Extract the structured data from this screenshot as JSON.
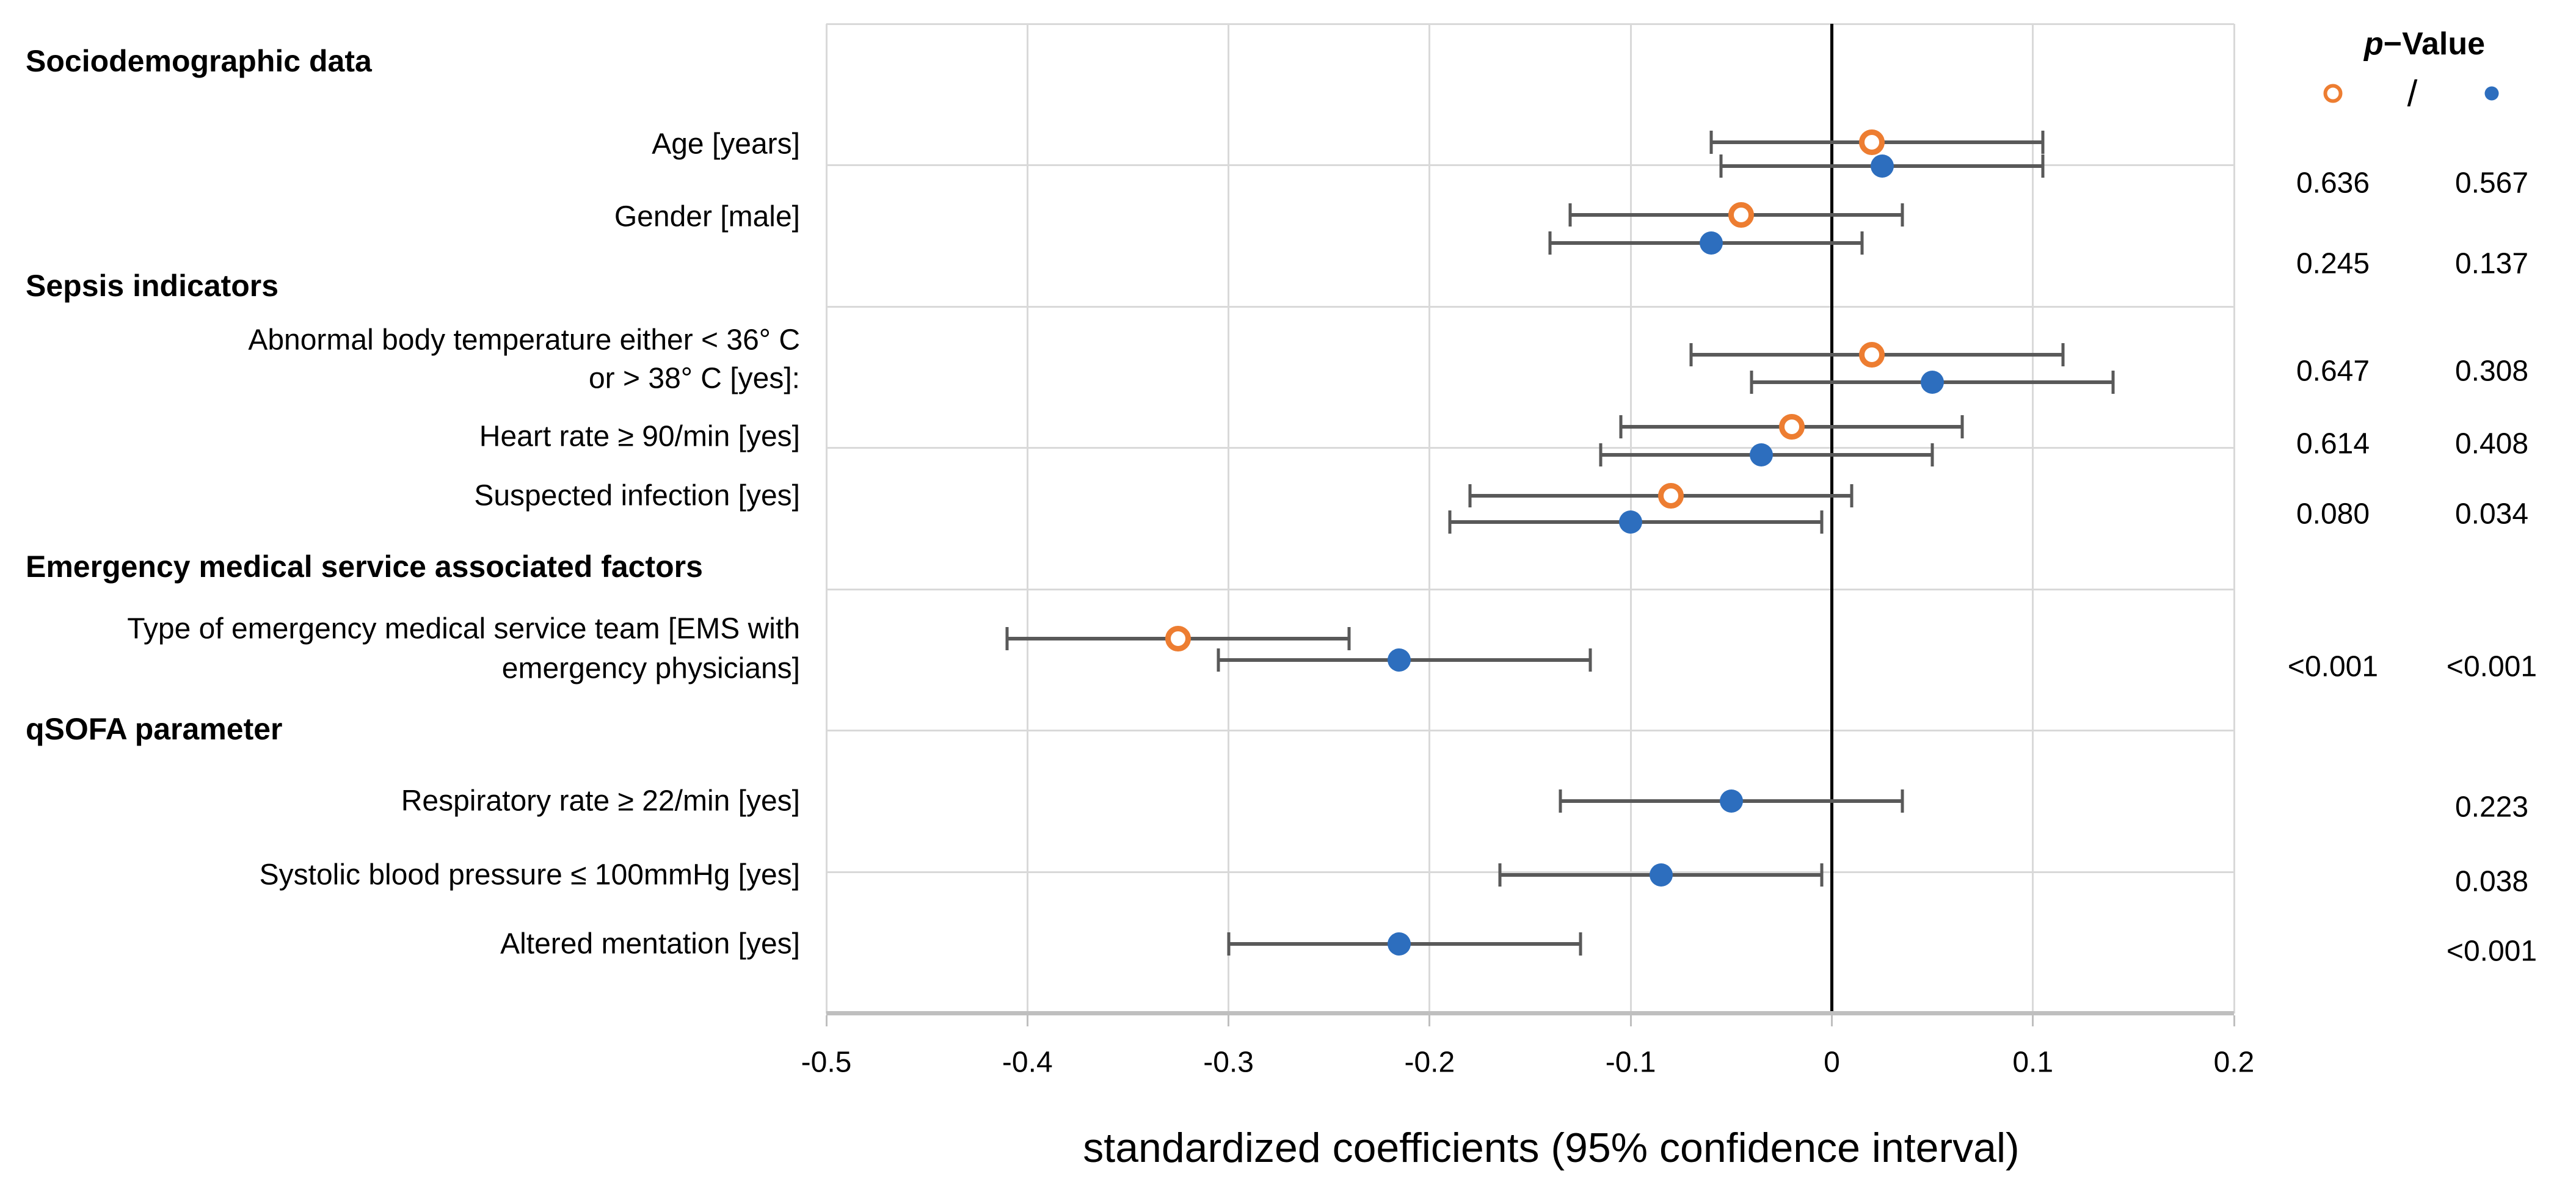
{
  "legend": {
    "title_p": "p",
    "title_rest": "−Value",
    "separator": "/",
    "orange_marker": "orange-open-circle",
    "blue_marker": "blue-filled-circle"
  },
  "axis": {
    "title": "standardized coefficients (95% confidence interval)",
    "tick_labels": [
      "-0.5",
      "-0.4",
      "-0.3",
      "-0.2",
      "-0.1",
      "0",
      "0.1",
      "0.2"
    ]
  },
  "colors": {
    "orange": "#ED7D31",
    "blue": "#2D6EBE",
    "error_bar": "#595959",
    "gridline": "#D9D9D9",
    "axis_line": "#BFBFBF",
    "zero_line": "#000000"
  },
  "chart_data": {
    "type": "scatter",
    "subtype": "forest-plot-with-95ci-error-bars",
    "xlabel": "standardized coefficients (95% confidence interval)",
    "xlim": [
      -0.5,
      0.2
    ],
    "xticks": [
      -0.5,
      -0.4,
      -0.3,
      -0.2,
      -0.1,
      0,
      0.1,
      0.2
    ],
    "grid": true,
    "legend_position": "top-right",
    "legend": {
      "title": "p−Value",
      "orange_symbol": "open circle",
      "separator": "/",
      "blue_symbol": "filled circle"
    },
    "items": [
      {
        "type": "header",
        "text": "Sociodemographic data"
      },
      {
        "type": "row",
        "label_lines": [
          "Age [years]"
        ],
        "orange": {
          "estimate": 0.02,
          "ci": [
            -0.06,
            0.105
          ],
          "p": "0.636"
        },
        "blue": {
          "estimate": 0.025,
          "ci": [
            -0.055,
            0.105
          ],
          "p": "0.567"
        }
      },
      {
        "type": "row",
        "label_lines": [
          "Gender [male]"
        ],
        "orange": {
          "estimate": -0.045,
          "ci": [
            -0.13,
            0.035
          ],
          "p": "0.245"
        },
        "blue": {
          "estimate": -0.06,
          "ci": [
            -0.14,
            0.015
          ],
          "p": "0.137"
        }
      },
      {
        "type": "header",
        "text": "Sepsis indicators"
      },
      {
        "type": "row",
        "label_lines": [
          "Abnormal body temperature either < 36° C",
          "or > 38° C [yes]:"
        ],
        "orange": {
          "estimate": 0.02,
          "ci": [
            -0.07,
            0.115
          ],
          "p": "0.647"
        },
        "blue": {
          "estimate": 0.05,
          "ci": [
            -0.04,
            0.14
          ],
          "p": "0.308"
        }
      },
      {
        "type": "row",
        "label_lines": [
          "Heart rate ≥ 90/min [yes]"
        ],
        "orange": {
          "estimate": -0.02,
          "ci": [
            -0.105,
            0.065
          ],
          "p": "0.614"
        },
        "blue": {
          "estimate": -0.035,
          "ci": [
            -0.115,
            0.05
          ],
          "p": "0.408"
        }
      },
      {
        "type": "row",
        "label_lines": [
          "Suspected infection [yes]"
        ],
        "orange": {
          "estimate": -0.08,
          "ci": [
            -0.18,
            0.01
          ],
          "p": "0.080"
        },
        "blue": {
          "estimate": -0.1,
          "ci": [
            -0.19,
            -0.005
          ],
          "p": "0.034"
        }
      },
      {
        "type": "header",
        "text": "Emergency medical service associated factors"
      },
      {
        "type": "row",
        "label_lines": [
          "Type of emergency medical service team [EMS with",
          "emergency physicians]"
        ],
        "orange": {
          "estimate": -0.325,
          "ci": [
            -0.41,
            -0.24
          ],
          "p": "<0.001"
        },
        "blue": {
          "estimate": -0.215,
          "ci": [
            -0.305,
            -0.12
          ],
          "p": "<0.001"
        }
      },
      {
        "type": "header",
        "text": "qSOFA parameter"
      },
      {
        "type": "row",
        "label_lines": [
          "Respiratory rate ≥ 22/min [yes]"
        ],
        "blue": {
          "estimate": -0.05,
          "ci": [
            -0.135,
            0.035
          ],
          "p": "0.223"
        }
      },
      {
        "type": "row",
        "label_lines": [
          "Systolic blood pressure ≤ 100mmHg [yes]"
        ],
        "blue": {
          "estimate": -0.085,
          "ci": [
            -0.165,
            -0.005
          ],
          "p": "0.038"
        }
      },
      {
        "type": "row",
        "label_lines": [
          "Altered mentation [yes]"
        ],
        "blue": {
          "estimate": -0.215,
          "ci": [
            -0.3,
            -0.125
          ],
          "p": "<0.001"
        }
      }
    ]
  }
}
